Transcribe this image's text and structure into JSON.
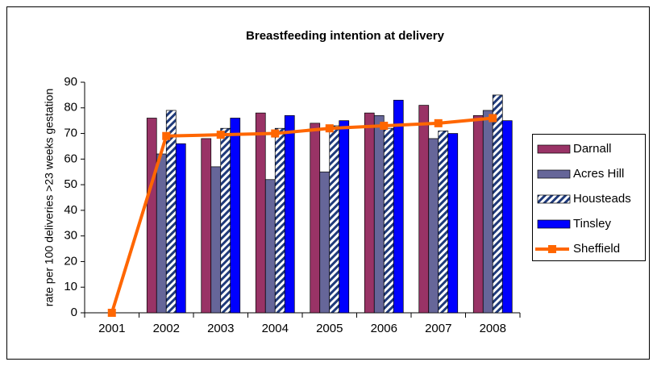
{
  "chart_data": {
    "type": "bar",
    "title": "Breastfeeding intention at delivery",
    "y_label": "rate per 100 deliveries >23 weeks gestation",
    "categories": [
      "2001",
      "2002",
      "2003",
      "2004",
      "2005",
      "2006",
      "2007",
      "2008"
    ],
    "series": [
      {
        "name": "Darnall",
        "color": "#993366",
        "values": [
          null,
          76,
          68,
          78,
          74,
          78,
          81,
          77
        ]
      },
      {
        "name": "Acres Hill",
        "color": "#666699",
        "values": [
          null,
          62,
          57,
          52,
          55,
          77,
          68,
          79
        ]
      },
      {
        "name": "Housteads",
        "color": "#1f3a7a",
        "pattern": "hatch",
        "values": [
          null,
          79,
          72,
          72,
          73,
          72,
          71,
          85
        ]
      },
      {
        "name": "Tinsley",
        "color": "#0000ff",
        "values": [
          null,
          66,
          76,
          77,
          75,
          83,
          70,
          75
        ]
      },
      {
        "name": "Sheffield",
        "color": "#ff6600",
        "type": "line",
        "values": [
          0,
          69,
          69.5,
          70,
          72,
          73,
          74,
          76
        ]
      }
    ],
    "ylim": [
      0,
      90
    ],
    "yticks": [
      0,
      10,
      20,
      30,
      40,
      50,
      60,
      70,
      80,
      90
    ],
    "grid": false,
    "legend": "right"
  }
}
